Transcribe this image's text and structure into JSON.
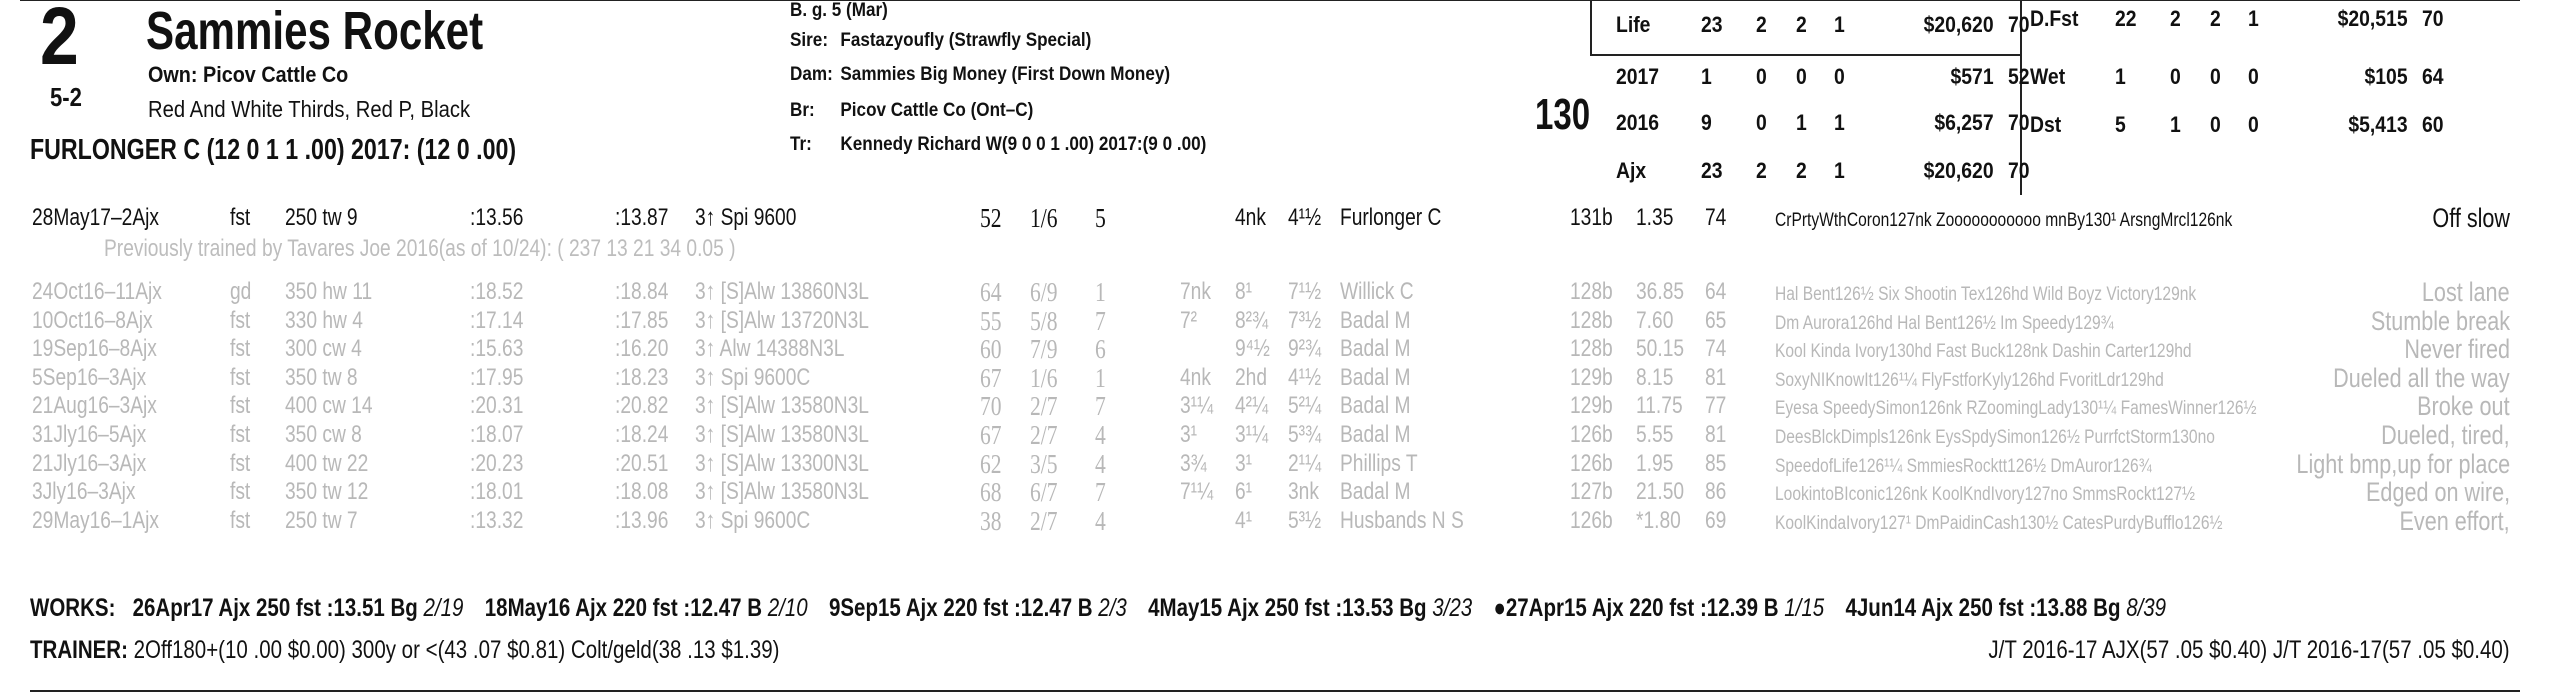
{
  "header": {
    "post_position": "2",
    "odds": "5-2",
    "horse_name": "Sammies Rocket",
    "owner": "Own: Picov Cattle Co",
    "silks": "Red And White Thirds, Red P, Black",
    "jockey_line": "FURLONGER C (12 0 1 1 .00) 2017: (12 0 .00)",
    "weight": "130"
  },
  "pedigree": [
    {
      "label": "",
      "value": "B. g. 5 (Mar)"
    },
    {
      "label": "Sire:",
      "value": "Fastazyoufly (Strawfly Special)"
    },
    {
      "label": "Dam:",
      "value": "Sammies Big Money (First Down Money)"
    },
    {
      "label": "Br:",
      "value": "Picov Cattle Co (Ont–C)"
    },
    {
      "label": "Tr:",
      "value": "Kennedy Richard W(9 0 0 1 .00) 2017:(9 0 .00)"
    }
  ],
  "record_left": [
    {
      "label": "Life",
      "starts": "23",
      "w": "2",
      "p": "2",
      "s": "1",
      "earn": "$20,620",
      "fig": "70"
    },
    {
      "label": "2017",
      "starts": "1",
      "w": "0",
      "p": "0",
      "s": "0",
      "earn": "$571",
      "fig": "52"
    },
    {
      "label": "2016",
      "starts": "9",
      "w": "0",
      "p": "1",
      "s": "1",
      "earn": "$6,257",
      "fig": "70"
    },
    {
      "label": "Ajx",
      "starts": "23",
      "w": "2",
      "p": "2",
      "s": "1",
      "earn": "$20,620",
      "fig": "70"
    }
  ],
  "record_right": [
    {
      "label": "D.Fst",
      "starts": "22",
      "w": "2",
      "p": "2",
      "s": "1",
      "earn": "$20,515",
      "fig": "70"
    },
    {
      "label": "Wet",
      "starts": "1",
      "w": "0",
      "p": "0",
      "s": "0",
      "earn": "$105",
      "fig": "64"
    },
    {
      "label": "Dst",
      "starts": "5",
      "w": "1",
      "p": "0",
      "s": "0",
      "earn": "$5,413",
      "fig": "60"
    }
  ],
  "current_race": {
    "date": "28May17–2Ajx",
    "cond": "fst",
    "dist": "250 tw 9",
    "t1": ":13.56",
    "t2": ":13.87",
    "type": "3↑ Spi 9600",
    "fig": "52",
    "pp": "1/6",
    "st": "5",
    "c1": "",
    "c2": "4nk",
    "fin": "4¹½",
    "jockey": "Furlonger C",
    "wt": "131b",
    "odds": "1.35",
    "spd": "74",
    "comp": "CrPrtyWthCoron127nk Zooooooooooo mnBy130¹ ArsngMrcl126nk",
    "comment": "Off slow"
  },
  "trainer_note": "Previously trained by Tavares Joe 2016(as of 10/24): ( 237 13 21 34 0.05 )",
  "past_races": [
    {
      "date": "24Oct16–11Ajx",
      "cond": "gd",
      "dist": "350 hw 11",
      "t1": ":18.52",
      "t2": ":18.84",
      "type": "3↑ [S]Alw 13860N3L",
      "fig": "64",
      "pp": "6/9",
      "st": "1",
      "c1": "7nk",
      "c2": "8¹",
      "fin": "7¹½",
      "jockey": "Willick C",
      "wt": "128b",
      "odds": "36.85",
      "spd": "64",
      "comp": "Hal Bent126½ Six Shootin Tex126hd Wild Boyz Victory129nk",
      "comment": "Lost lane"
    },
    {
      "date": "10Oct16–8Ajx",
      "cond": "fst",
      "dist": "330 hw 4",
      "t1": ":17.14",
      "t2": ":17.85",
      "type": "3↑ [S]Alw 13720N3L",
      "fig": "55",
      "pp": "5/8",
      "st": "7",
      "c1": "7²",
      "c2": "8²¾",
      "fin": "7³½",
      "jockey": "Badal M",
      "wt": "128b",
      "odds": "7.60",
      "spd": "65",
      "comp": "Dm Aurora126hd Hal Bent126½ Im Speedy129¾",
      "comment": "Stumble break"
    },
    {
      "date": "19Sep16–8Ajx",
      "cond": "fst",
      "dist": "300 cw 4",
      "t1": ":15.63",
      "t2": ":16.20",
      "type": "3↑ Alw 14388N3L",
      "fig": "60",
      "pp": "7/9",
      "st": "6",
      "c1": "",
      "c2": "9⁴½",
      "fin": "9²¾",
      "jockey": "Badal M",
      "wt": "128b",
      "odds": "50.15",
      "spd": "74",
      "comp": "Kool Kinda Ivory130hd Fast Buck128nk Dashin Carter129hd",
      "comment": "Never fired"
    },
    {
      "date": "5Sep16–3Ajx",
      "cond": "fst",
      "dist": "350 tw 8",
      "t1": ":17.95",
      "t2": ":18.23",
      "type": "3↑ Spi 9600C",
      "fig": "67",
      "pp": "1/6",
      "st": "1",
      "c1": "4nk",
      "c2": "2hd",
      "fin": "4¹½",
      "jockey": "Badal M",
      "wt": "129b",
      "odds": "8.15",
      "spd": "81",
      "comp": "SoxyNIKnowIt126¹¼ FlyFstforKyly126hd FvoritLdr129hd",
      "comment": "Dueled all the way"
    },
    {
      "date": "21Aug16–3Ajx",
      "cond": "fst",
      "dist": "400 cw 14",
      "t1": ":20.31",
      "t2": ":20.82",
      "type": "3↑ [S]Alw 13580N3L",
      "fig": "70",
      "pp": "2/7",
      "st": "7",
      "c1": "3¹¼",
      "c2": "4²¼",
      "fin": "5²¼",
      "jockey": "Badal M",
      "wt": "129b",
      "odds": "11.75",
      "spd": "77",
      "comp": "Eyesa SpeedySimon126nk RZoomingLady130¹¼ FamesWinner126½",
      "comment": "Broke out"
    },
    {
      "date": "31Jly16–5Ajx",
      "cond": "fst",
      "dist": "350 cw 8",
      "t1": ":18.07",
      "t2": ":18.24",
      "type": "3↑ [S]Alw 13580N3L",
      "fig": "67",
      "pp": "2/7",
      "st": "4",
      "c1": "3¹",
      "c2": "3¹¼",
      "fin": "5³¾",
      "jockey": "Badal M",
      "wt": "126b",
      "odds": "5.55",
      "spd": "81",
      "comp": "DeesBlckDimpls126nk EysSpdySimon126½ PurrfctStorm130no",
      "comment": "Dueled, tired,"
    },
    {
      "date": "21Jly16–3Ajx",
      "cond": "fst",
      "dist": "400 tw 22",
      "t1": ":20.23",
      "t2": ":20.51",
      "type": "3↑ [S]Alw 13300N3L",
      "fig": "62",
      "pp": "3/5",
      "st": "4",
      "c1": "3¾",
      "c2": "3¹",
      "fin": "2¹¼",
      "jockey": "Phillips T",
      "wt": "126b",
      "odds": "1.95",
      "spd": "85",
      "comp": "SpeedofLife126¹¼ SmmiesRocktt126½ DmAuror126¾",
      "comment": "Light bmp,up for place"
    },
    {
      "date": "3Jly16–3Ajx",
      "cond": "fst",
      "dist": "350 tw 12",
      "t1": ":18.01",
      "t2": ":18.08",
      "type": "3↑ [S]Alw 13580N3L",
      "fig": "68",
      "pp": "6/7",
      "st": "7",
      "c1": "7¹¼",
      "c2": "6¹",
      "fin": "3nk",
      "jockey": "Badal M",
      "wt": "127b",
      "odds": "21.50",
      "spd": "86",
      "comp": "LookintoBIconic126nk KoolKndIvory127no SmmsRockt127½",
      "comment": "Edged on wire,"
    },
    {
      "date": "29May16–1Ajx",
      "cond": "fst",
      "dist": "250 tw 7",
      "t1": ":13.32",
      "t2": ":13.96",
      "type": "3↑ Spi 9600C",
      "fig": "38",
      "pp": "2/7",
      "st": "4",
      "c1": "",
      "c2": "4¹",
      "fin": "5³½",
      "jockey": "Husbands N S",
      "wt": "126b",
      "odds": "*1.80",
      "spd": "69",
      "comp": "KoolKindaIvory127¹ DmPaidinCash130½ CatesPurdyBufflo126½",
      "comment": "Even effort,"
    }
  ],
  "works": {
    "label": "WORKS:",
    "entries": [
      {
        "text": "26Apr17 Ajx 250 fst :13.51 Bg",
        "rank": "2/19"
      },
      {
        "text": "18May16 Ajx 220 fst :12.47 B",
        "rank": "2/10"
      },
      {
        "text": "9Sep15 Ajx 220 fst :12.47 B",
        "rank": "2/3"
      },
      {
        "text": "4May15 Ajx 250 fst :13.53 Bg",
        "rank": "3/23"
      },
      {
        "text": "●27Apr15 Ajx 220 fst :12.39 B",
        "rank": "1/15"
      },
      {
        "text": "4Jun14 Ajx 250 fst :13.88 Bg",
        "rank": "8/39"
      }
    ]
  },
  "trainer_stats": {
    "label": "TRAINER:",
    "value": "2Off180+(10 .00 $0.00) 300y or <(43 .07 $0.81) Colt/geld(38 .13 $1.39)"
  },
  "jt_stats": "J/T 2016-17 AJX(57 .05 $0.40) J/T 2016-17(57 .05 $0.40)"
}
